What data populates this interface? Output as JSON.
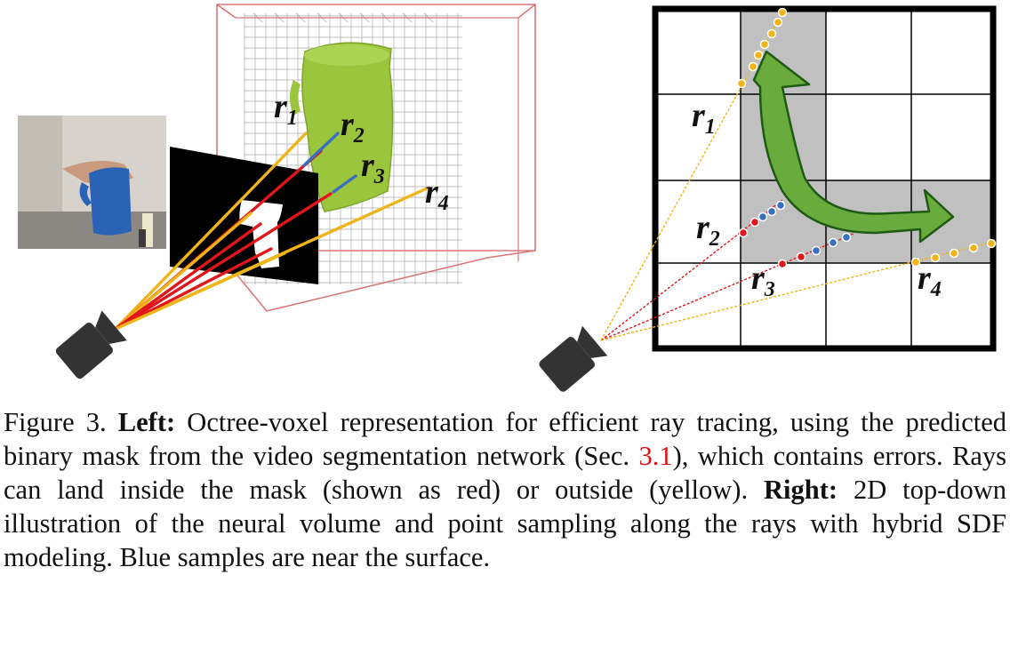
{
  "figure": {
    "left": {
      "ray_labels": [
        {
          "letter": "r",
          "sub": "1"
        },
        {
          "letter": "r",
          "sub": "2"
        },
        {
          "letter": "r",
          "sub": "3"
        },
        {
          "letter": "r",
          "sub": "4"
        }
      ]
    },
    "right": {
      "ray_labels": [
        {
          "letter": "r",
          "sub": "1"
        },
        {
          "letter": "r",
          "sub": "2"
        },
        {
          "letter": "r",
          "sub": "3"
        },
        {
          "letter": "r",
          "sub": "4"
        }
      ]
    },
    "colors": {
      "inside_ray": "#e0161b",
      "outside_ray": "#f0b417",
      "near_surface_ray": "#3a6fc0",
      "object": "#9bc53d",
      "arrow": "#6aab3e",
      "grid_shade": "#c0c0c0",
      "box_outline": "#d9787a"
    }
  },
  "caption": {
    "figure_label": "Figure 3.",
    "left_label": "Left:",
    "left_text_1": "Octree-voxel representation for efficient ray tracing, using the predicted binary mask from the video segmentation network (Sec.",
    "section_ref": "3.1",
    "left_text_2": "), which contains errors.  Rays can land inside the mask (shown as red) or outside (yellow).",
    "right_label": "Right:",
    "right_text": "2D top-down illustration of the neural volume and point sampling along the rays with hybrid SDF modeling. Blue samples are near the surface."
  }
}
